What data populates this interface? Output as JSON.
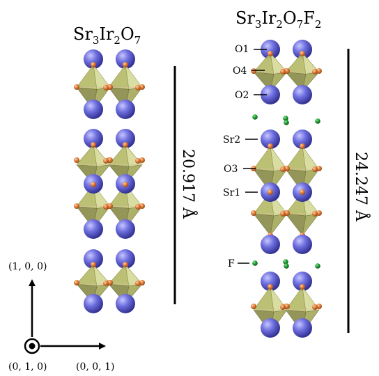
{
  "left_panel": {
    "title": {
      "a": "Sr",
      "b": "3",
      "c": "Ir",
      "d": "2",
      "e": "O",
      "f": "7"
    },
    "dimension": "20.917 Å"
  },
  "right_panel": {
    "title": {
      "a": "Sr",
      "b": "3",
      "c": "Ir",
      "d": "2",
      "e": "O",
      "f": "7",
      "g": "F",
      "h": "2"
    },
    "dimension": "24.247 Å",
    "atom_labels": {
      "o1": "O1",
      "o4": "O4",
      "o2": "O2",
      "sr2": "Sr2",
      "o3": "O3",
      "sr1": "Sr1",
      "f": "F"
    }
  },
  "axes": {
    "up": "(1, 0, 0)",
    "out": "(0, 1, 0)",
    "right": "(0, 0, 1)"
  },
  "colors": {
    "sr": "#6f6fd6",
    "oxygen": "#e07d3c",
    "fluorine": "#1f9d32",
    "octahedron": "#c9cd8a"
  }
}
